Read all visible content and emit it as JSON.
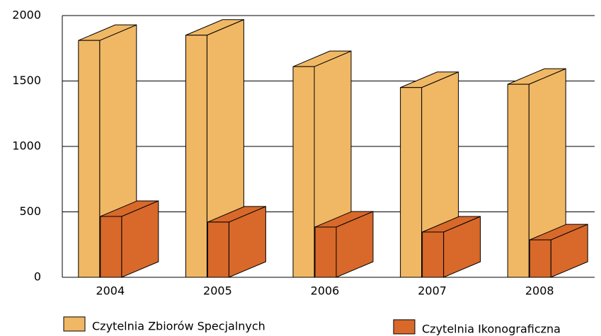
{
  "chart_data": {
    "type": "bar3d",
    "categories": [
      "2004",
      "2005",
      "2006",
      "2007",
      "2008"
    ],
    "series": [
      {
        "name": "Czytelnia Zbiorów Specjalnych",
        "color": "#f0b865",
        "values": [
          1810,
          1850,
          1610,
          1450,
          1475
        ]
      },
      {
        "name": "Czytelnia Ikonograficzna",
        "color": "#d8692a",
        "values": [
          465,
          422,
          384,
          346,
          286
        ]
      }
    ],
    "ylim": [
      0,
      2000
    ],
    "yticks": [
      0,
      500,
      1000,
      1500,
      2000
    ],
    "grid": true
  }
}
